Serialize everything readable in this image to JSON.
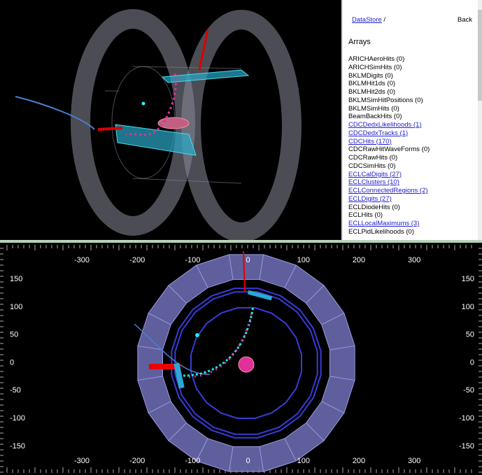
{
  "side_panel": {
    "breadcrumb": {
      "link": "DataStore",
      "separator": "/"
    },
    "back": "Back",
    "heading": "Arrays",
    "items": [
      {
        "text": "ARICHAeroHits (0)",
        "link": false
      },
      {
        "text": "ARICHSimHits (0)",
        "link": false
      },
      {
        "text": "BKLMDigits (0)",
        "link": false
      },
      {
        "text": "BKLMHit1ds (0)",
        "link": false
      },
      {
        "text": "BKLMHit2ds (0)",
        "link": false
      },
      {
        "text": "BKLMSimHitPositions (0)",
        "link": false
      },
      {
        "text": "BKLMSimHits (0)",
        "link": false
      },
      {
        "text": "BeamBackHits (0)",
        "link": false
      },
      {
        "text": "CDCDedxLikelihoods (1)",
        "link": true
      },
      {
        "text": "CDCDedxTracks (1)",
        "link": true
      },
      {
        "text": "CDCHits (170)",
        "link": true
      },
      {
        "text": "CDCRawHitWaveForms (0)",
        "link": false
      },
      {
        "text": "CDCRawHits (0)",
        "link": false
      },
      {
        "text": "CDCSimHits (0)",
        "link": false
      },
      {
        "text": "ECLCalDigits (27)",
        "link": true
      },
      {
        "text": "ECLClusters (10)",
        "link": true
      },
      {
        "text": "ECLConnectedRegions (2)",
        "link": true
      },
      {
        "text": "ECLDigits (27)",
        "link": true
      },
      {
        "text": "ECLDiodeHits (0)",
        "link": false
      },
      {
        "text": "ECLHits (0)",
        "link": false
      },
      {
        "text": "ECLLocalMaximums (3)",
        "link": true
      },
      {
        "text": "ECLPidLikelihoods (0)",
        "link": false
      }
    ]
  },
  "projection_view": {
    "x_labels": [
      "-300",
      "-200",
      "-100",
      "0",
      "100",
      "200",
      "300"
    ],
    "y_labels": [
      "150",
      "100",
      "50",
      "0",
      "-50",
      "-100",
      "-150"
    ]
  }
}
